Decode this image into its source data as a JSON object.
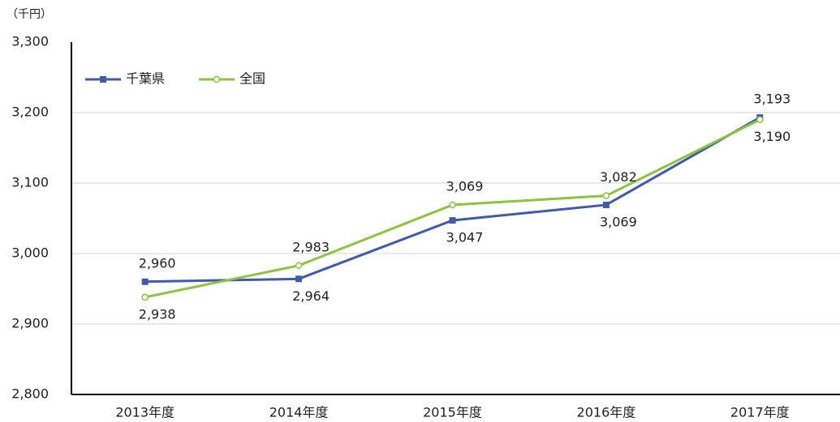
{
  "chart_data": {
    "type": "line",
    "unit_label": "（千円）",
    "categories": [
      "2013年度",
      "2014年度",
      "2015年度",
      "2016年度",
      "2017年度"
    ],
    "series": [
      {
        "name": "千葉県",
        "color": "#3f5ba9",
        "marker": "square",
        "values": [
          2960,
          2964,
          3047,
          3069,
          3193
        ],
        "value_labels": [
          "2,960",
          "2,964",
          "3,047",
          "3,069",
          "3,193"
        ]
      },
      {
        "name": "全国",
        "color": "#8cc43f",
        "marker": "circle",
        "values": [
          2938,
          2983,
          3069,
          3082,
          3190
        ],
        "value_labels": [
          "2,938",
          "2,983",
          "3,069",
          "3,082",
          "3,190"
        ]
      }
    ],
    "ylim": [
      2800,
      3300
    ],
    "yticks": [
      {
        "value": 2800,
        "label": "2,800"
      },
      {
        "value": 2900,
        "label": "2,900"
      },
      {
        "value": 3000,
        "label": "3,000"
      },
      {
        "value": 3100,
        "label": "3,100"
      },
      {
        "value": 3200,
        "label": "3,200"
      },
      {
        "value": 3300,
        "label": "3,300"
      }
    ],
    "grid": true,
    "legend": "upper-left"
  }
}
